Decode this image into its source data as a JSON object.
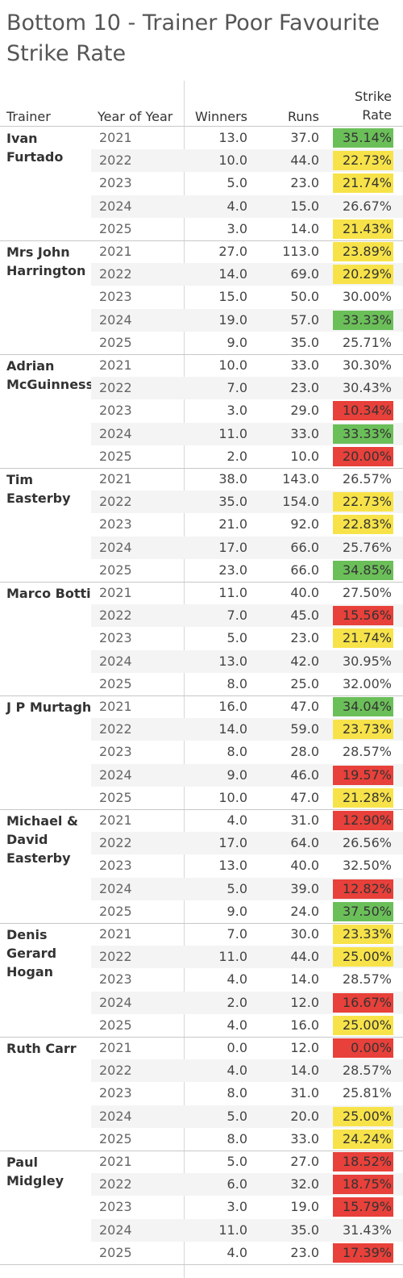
{
  "chart_data": {
    "type": "table",
    "title": "Bottom 10 - Trainer Poor Favourite Strike Rate",
    "columns": {
      "trainer": "Trainer",
      "year": "Year of Year",
      "winners": "Winners",
      "runs": "Runs",
      "strike_rate": "Strike Rate"
    },
    "colors": {
      "green": "#6bbf59",
      "yellow": "#f7e349",
      "red": "#e8403a"
    },
    "trainers": [
      {
        "name": "Ivan Furtado",
        "rows": [
          {
            "year": "2021",
            "winners": "13.0",
            "runs": "37.0",
            "strike_rate": "35.14%",
            "highlight": "green"
          },
          {
            "year": "2022",
            "winners": "10.0",
            "runs": "44.0",
            "strike_rate": "22.73%",
            "highlight": "yellow"
          },
          {
            "year": "2023",
            "winners": "5.0",
            "runs": "23.0",
            "strike_rate": "21.74%",
            "highlight": "yellow"
          },
          {
            "year": "2024",
            "winners": "4.0",
            "runs": "15.0",
            "strike_rate": "26.67%",
            "highlight": ""
          },
          {
            "year": "2025",
            "winners": "3.0",
            "runs": "14.0",
            "strike_rate": "21.43%",
            "highlight": "yellow"
          }
        ]
      },
      {
        "name": "Mrs John Harrington",
        "rows": [
          {
            "year": "2021",
            "winners": "27.0",
            "runs": "113.0",
            "strike_rate": "23.89%",
            "highlight": "yellow"
          },
          {
            "year": "2022",
            "winners": "14.0",
            "runs": "69.0",
            "strike_rate": "20.29%",
            "highlight": "yellow"
          },
          {
            "year": "2023",
            "winners": "15.0",
            "runs": "50.0",
            "strike_rate": "30.00%",
            "highlight": ""
          },
          {
            "year": "2024",
            "winners": "19.0",
            "runs": "57.0",
            "strike_rate": "33.33%",
            "highlight": "green"
          },
          {
            "year": "2025",
            "winners": "9.0",
            "runs": "35.0",
            "strike_rate": "25.71%",
            "highlight": ""
          }
        ]
      },
      {
        "name": "Adrian McGuinness",
        "rows": [
          {
            "year": "2021",
            "winners": "10.0",
            "runs": "33.0",
            "strike_rate": "30.30%",
            "highlight": ""
          },
          {
            "year": "2022",
            "winners": "7.0",
            "runs": "23.0",
            "strike_rate": "30.43%",
            "highlight": ""
          },
          {
            "year": "2023",
            "winners": "3.0",
            "runs": "29.0",
            "strike_rate": "10.34%",
            "highlight": "red"
          },
          {
            "year": "2024",
            "winners": "11.0",
            "runs": "33.0",
            "strike_rate": "33.33%",
            "highlight": "green"
          },
          {
            "year": "2025",
            "winners": "2.0",
            "runs": "10.0",
            "strike_rate": "20.00%",
            "highlight": "red"
          }
        ]
      },
      {
        "name": "Tim Easterby",
        "rows": [
          {
            "year": "2021",
            "winners": "38.0",
            "runs": "143.0",
            "strike_rate": "26.57%",
            "highlight": ""
          },
          {
            "year": "2022",
            "winners": "35.0",
            "runs": "154.0",
            "strike_rate": "22.73%",
            "highlight": "yellow"
          },
          {
            "year": "2023",
            "winners": "21.0",
            "runs": "92.0",
            "strike_rate": "22.83%",
            "highlight": "yellow"
          },
          {
            "year": "2024",
            "winners": "17.0",
            "runs": "66.0",
            "strike_rate": "25.76%",
            "highlight": ""
          },
          {
            "year": "2025",
            "winners": "23.0",
            "runs": "66.0",
            "strike_rate": "34.85%",
            "highlight": "green"
          }
        ]
      },
      {
        "name": "Marco Botti",
        "rows": [
          {
            "year": "2021",
            "winners": "11.0",
            "runs": "40.0",
            "strike_rate": "27.50%",
            "highlight": ""
          },
          {
            "year": "2022",
            "winners": "7.0",
            "runs": "45.0",
            "strike_rate": "15.56%",
            "highlight": "red"
          },
          {
            "year": "2023",
            "winners": "5.0",
            "runs": "23.0",
            "strike_rate": "21.74%",
            "highlight": "yellow"
          },
          {
            "year": "2024",
            "winners": "13.0",
            "runs": "42.0",
            "strike_rate": "30.95%",
            "highlight": ""
          },
          {
            "year": "2025",
            "winners": "8.0",
            "runs": "25.0",
            "strike_rate": "32.00%",
            "highlight": ""
          }
        ]
      },
      {
        "name": "J P Murtagh",
        "rows": [
          {
            "year": "2021",
            "winners": "16.0",
            "runs": "47.0",
            "strike_rate": "34.04%",
            "highlight": "green"
          },
          {
            "year": "2022",
            "winners": "14.0",
            "runs": "59.0",
            "strike_rate": "23.73%",
            "highlight": "yellow"
          },
          {
            "year": "2023",
            "winners": "8.0",
            "runs": "28.0",
            "strike_rate": "28.57%",
            "highlight": ""
          },
          {
            "year": "2024",
            "winners": "9.0",
            "runs": "46.0",
            "strike_rate": "19.57%",
            "highlight": "red"
          },
          {
            "year": "2025",
            "winners": "10.0",
            "runs": "47.0",
            "strike_rate": "21.28%",
            "highlight": "yellow"
          }
        ]
      },
      {
        "name": "Michael & David Easterby",
        "rows": [
          {
            "year": "2021",
            "winners": "4.0",
            "runs": "31.0",
            "strike_rate": "12.90%",
            "highlight": "red"
          },
          {
            "year": "2022",
            "winners": "17.0",
            "runs": "64.0",
            "strike_rate": "26.56%",
            "highlight": ""
          },
          {
            "year": "2023",
            "winners": "13.0",
            "runs": "40.0",
            "strike_rate": "32.50%",
            "highlight": ""
          },
          {
            "year": "2024",
            "winners": "5.0",
            "runs": "39.0",
            "strike_rate": "12.82%",
            "highlight": "red"
          },
          {
            "year": "2025",
            "winners": "9.0",
            "runs": "24.0",
            "strike_rate": "37.50%",
            "highlight": "green"
          }
        ]
      },
      {
        "name": "Denis Gerard Hogan",
        "rows": [
          {
            "year": "2021",
            "winners": "7.0",
            "runs": "30.0",
            "strike_rate": "23.33%",
            "highlight": "yellow"
          },
          {
            "year": "2022",
            "winners": "11.0",
            "runs": "44.0",
            "strike_rate": "25.00%",
            "highlight": "yellow"
          },
          {
            "year": "2023",
            "winners": "4.0",
            "runs": "14.0",
            "strike_rate": "28.57%",
            "highlight": ""
          },
          {
            "year": "2024",
            "winners": "2.0",
            "runs": "12.0",
            "strike_rate": "16.67%",
            "highlight": "red"
          },
          {
            "year": "2025",
            "winners": "4.0",
            "runs": "16.0",
            "strike_rate": "25.00%",
            "highlight": "yellow"
          }
        ]
      },
      {
        "name": "Ruth Carr",
        "rows": [
          {
            "year": "2021",
            "winners": "0.0",
            "runs": "12.0",
            "strike_rate": "0.00%",
            "highlight": "red"
          },
          {
            "year": "2022",
            "winners": "4.0",
            "runs": "14.0",
            "strike_rate": "28.57%",
            "highlight": ""
          },
          {
            "year": "2023",
            "winners": "8.0",
            "runs": "31.0",
            "strike_rate": "25.81%",
            "highlight": ""
          },
          {
            "year": "2024",
            "winners": "5.0",
            "runs": "20.0",
            "strike_rate": "25.00%",
            "highlight": "yellow"
          },
          {
            "year": "2025",
            "winners": "8.0",
            "runs": "33.0",
            "strike_rate": "24.24%",
            "highlight": "yellow"
          }
        ]
      },
      {
        "name": "Paul Midgley",
        "rows": [
          {
            "year": "2021",
            "winners": "5.0",
            "runs": "27.0",
            "strike_rate": "18.52%",
            "highlight": "red"
          },
          {
            "year": "2022",
            "winners": "6.0",
            "runs": "32.0",
            "strike_rate": "18.75%",
            "highlight": "red"
          },
          {
            "year": "2023",
            "winners": "3.0",
            "runs": "19.0",
            "strike_rate": "15.79%",
            "highlight": "red"
          },
          {
            "year": "2024",
            "winners": "11.0",
            "runs": "35.0",
            "strike_rate": "31.43%",
            "highlight": ""
          },
          {
            "year": "2025",
            "winners": "4.0",
            "runs": "23.0",
            "strike_rate": "17.39%",
            "highlight": "red"
          }
        ]
      }
    ]
  }
}
